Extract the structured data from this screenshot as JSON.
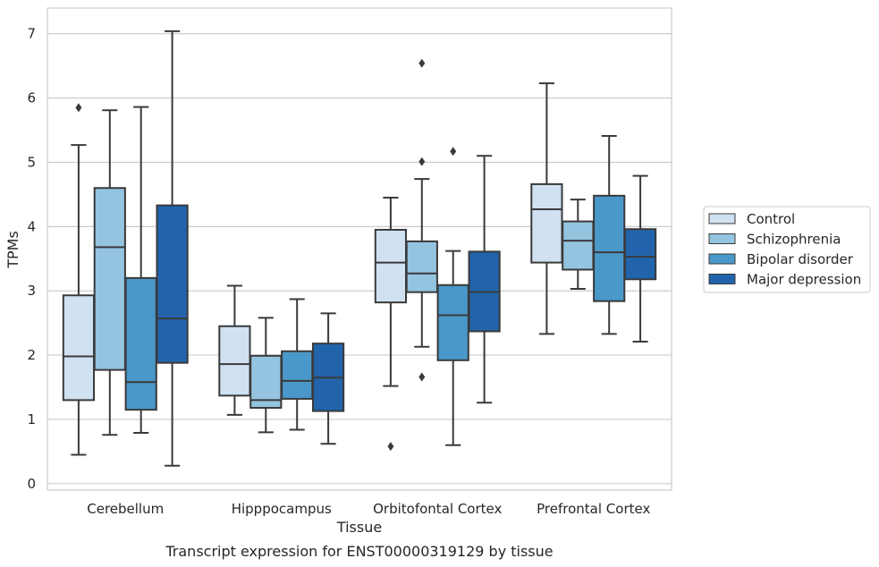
{
  "caption": "Transcript expression for ENST00000319129 by tissue",
  "chart_data": {
    "type": "box",
    "title": "",
    "xlabel": "Tissue",
    "ylabel": "TPMs",
    "ylim": [
      -0.1,
      7.4
    ],
    "yticks": [
      0,
      1,
      2,
      3,
      4,
      5,
      6,
      7
    ],
    "grid": "horizontal",
    "legend_position": "right",
    "categories": [
      "Cerebellum",
      "Hipppocampus",
      "Orbitofontal Cortex",
      "Prefrontal Cortex"
    ],
    "series": [
      {
        "name": "Control",
        "color": "#d0e1f2",
        "boxes": [
          {
            "whisker_low": 0.45,
            "q1": 1.3,
            "median": 1.98,
            "q3": 2.93,
            "whisker_high": 5.27,
            "outliers": [
              5.85
            ]
          },
          {
            "whisker_low": 1.07,
            "q1": 1.37,
            "median": 1.86,
            "q3": 2.45,
            "whisker_high": 3.08,
            "outliers": []
          },
          {
            "whisker_low": 1.52,
            "q1": 2.82,
            "median": 3.44,
            "q3": 3.95,
            "whisker_high": 4.45,
            "outliers": [
              0.58
            ]
          },
          {
            "whisker_low": 2.33,
            "q1": 3.44,
            "median": 4.27,
            "q3": 4.66,
            "whisker_high": 6.23,
            "outliers": []
          }
        ]
      },
      {
        "name": "Schizophrenia",
        "color": "#94c4df",
        "boxes": [
          {
            "whisker_low": 0.76,
            "q1": 1.77,
            "median": 3.68,
            "q3": 4.6,
            "whisker_high": 5.81,
            "outliers": []
          },
          {
            "whisker_low": 0.8,
            "q1": 1.18,
            "median": 1.3,
            "q3": 1.99,
            "whisker_high": 2.58,
            "outliers": []
          },
          {
            "whisker_low": 2.13,
            "q1": 2.98,
            "median": 3.27,
            "q3": 3.77,
            "whisker_high": 4.74,
            "outliers": [
              1.66,
              5.01,
              6.54
            ]
          },
          {
            "whisker_low": 3.03,
            "q1": 3.33,
            "median": 3.78,
            "q3": 4.08,
            "whisker_high": 4.42,
            "outliers": []
          }
        ]
      },
      {
        "name": "Bipolar disorder",
        "color": "#4a98c9",
        "boxes": [
          {
            "whisker_low": 0.79,
            "q1": 1.15,
            "median": 1.58,
            "q3": 3.2,
            "whisker_high": 5.86,
            "outliers": []
          },
          {
            "whisker_low": 0.84,
            "q1": 1.32,
            "median": 1.6,
            "q3": 2.06,
            "whisker_high": 2.87,
            "outliers": []
          },
          {
            "whisker_low": 0.6,
            "q1": 1.92,
            "median": 2.62,
            "q3": 3.09,
            "whisker_high": 3.62,
            "outliers": [
              5.17
            ]
          },
          {
            "whisker_low": 2.33,
            "q1": 2.84,
            "median": 3.6,
            "q3": 4.48,
            "whisker_high": 5.41,
            "outliers": []
          }
        ]
      },
      {
        "name": "Major depression",
        "color": "#2164ab",
        "boxes": [
          {
            "whisker_low": 0.28,
            "q1": 1.88,
            "median": 2.57,
            "q3": 4.33,
            "whisker_high": 7.04,
            "outliers": []
          },
          {
            "whisker_low": 0.62,
            "q1": 1.13,
            "median": 1.65,
            "q3": 2.18,
            "whisker_high": 2.65,
            "outliers": []
          },
          {
            "whisker_low": 1.26,
            "q1": 2.37,
            "median": 2.98,
            "q3": 3.61,
            "whisker_high": 5.1,
            "outliers": []
          },
          {
            "whisker_low": 2.21,
            "q1": 3.18,
            "median": 3.53,
            "q3": 3.96,
            "whisker_high": 4.79,
            "outliers": []
          }
        ]
      }
    ]
  }
}
